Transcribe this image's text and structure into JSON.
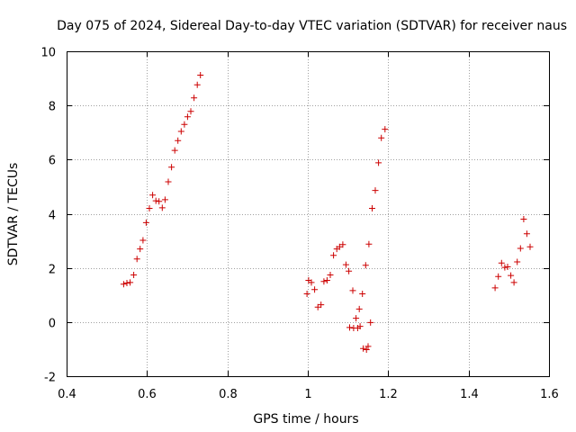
{
  "chart_data": {
    "type": "scatter",
    "title": "Day 075 of 2024, Sidereal Day-to-day VTEC variation (SDTVAR) for receiver naus",
    "xlabel": "GPS time / hours",
    "ylabel": "SDTVAR / TECUs",
    "xlim": [
      0.4,
      1.6
    ],
    "ylim": [
      -2,
      10
    ],
    "xticks": [
      0.4,
      0.6,
      0.8,
      1.0,
      1.2,
      1.4,
      1.6
    ],
    "xtick_labels": [
      "0.4",
      "0.6",
      "0.8",
      "1",
      "1.2",
      "1.4",
      "1.6"
    ],
    "yticks": [
      -2,
      0,
      2,
      4,
      6,
      8,
      10
    ],
    "ytick_labels": [
      "-2",
      "0",
      "2",
      "4",
      "6",
      "8",
      "10"
    ],
    "grid": true,
    "marker": "+",
    "color": "#cc0000",
    "series": [
      {
        "name": "SDTVAR",
        "points": [
          [
            0.542,
            1.4
          ],
          [
            0.55,
            1.44
          ],
          [
            0.558,
            1.46
          ],
          [
            0.567,
            1.74
          ],
          [
            0.575,
            2.33
          ],
          [
            0.583,
            2.7
          ],
          [
            0.59,
            3.02
          ],
          [
            0.598,
            3.67
          ],
          [
            0.606,
            4.2
          ],
          [
            0.614,
            4.69
          ],
          [
            0.622,
            4.48
          ],
          [
            0.63,
            4.46
          ],
          [
            0.638,
            4.22
          ],
          [
            0.645,
            4.52
          ],
          [
            0.653,
            5.18
          ],
          [
            0.661,
            5.72
          ],
          [
            0.669,
            6.34
          ],
          [
            0.677,
            6.7
          ],
          [
            0.685,
            7.04
          ],
          [
            0.693,
            7.3
          ],
          [
            0.701,
            7.58
          ],
          [
            0.709,
            7.78
          ],
          [
            0.717,
            8.28
          ],
          [
            0.725,
            8.76
          ],
          [
            0.733,
            9.12
          ],
          [
            0.998,
            1.04
          ],
          [
            1.002,
            1.54
          ],
          [
            1.009,
            1.46
          ],
          [
            1.017,
            1.2
          ],
          [
            1.025,
            0.55
          ],
          [
            1.033,
            0.64
          ],
          [
            1.04,
            1.5
          ],
          [
            1.048,
            1.54
          ],
          [
            1.056,
            1.74
          ],
          [
            1.064,
            2.46
          ],
          [
            1.072,
            2.7
          ],
          [
            1.079,
            2.78
          ],
          [
            1.087,
            2.86
          ],
          [
            1.095,
            2.12
          ],
          [
            1.102,
            1.88
          ],
          [
            1.104,
            -0.2
          ],
          [
            1.112,
            1.16
          ],
          [
            1.114,
            -0.22
          ],
          [
            1.12,
            0.14
          ],
          [
            1.124,
            -0.22
          ],
          [
            1.128,
            0.48
          ],
          [
            1.13,
            -0.16
          ],
          [
            1.136,
            1.04
          ],
          [
            1.138,
            -0.98
          ],
          [
            1.144,
            2.1
          ],
          [
            1.146,
            -1.02
          ],
          [
            1.15,
            -0.9
          ],
          [
            1.152,
            2.88
          ],
          [
            1.156,
            -0.02
          ],
          [
            1.16,
            4.2
          ],
          [
            1.168,
            4.86
          ],
          [
            1.176,
            5.88
          ],
          [
            1.183,
            6.8
          ],
          [
            1.192,
            7.12
          ],
          [
            1.466,
            1.26
          ],
          [
            1.474,
            1.68
          ],
          [
            1.482,
            2.18
          ],
          [
            1.49,
            2.02
          ],
          [
            1.497,
            2.04
          ],
          [
            1.505,
            1.72
          ],
          [
            1.513,
            1.46
          ],
          [
            1.521,
            2.22
          ],
          [
            1.529,
            2.72
          ],
          [
            1.537,
            3.8
          ],
          [
            1.545,
            3.26
          ],
          [
            1.553,
            2.78
          ]
        ]
      }
    ]
  }
}
